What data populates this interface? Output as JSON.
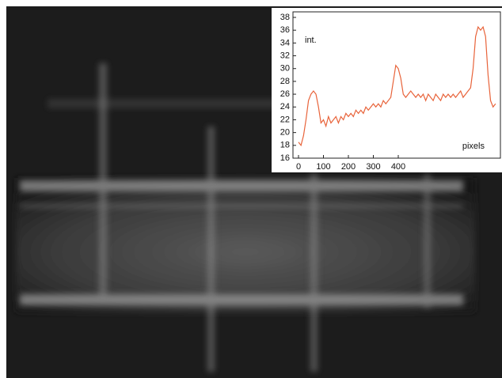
{
  "chart_data": {
    "type": "line",
    "annotations": [
      "int.",
      "pixels"
    ],
    "x": [
      0,
      10,
      20,
      30,
      40,
      50,
      60,
      70,
      80,
      90,
      100,
      110,
      120,
      130,
      140,
      150,
      160,
      170,
      180,
      190,
      200,
      210,
      220,
      230,
      240,
      250,
      260,
      270,
      280,
      290,
      300,
      310,
      320,
      330,
      340,
      350,
      360,
      370,
      380,
      390,
      400,
      410,
      420,
      430,
      440,
      450,
      460,
      470,
      480,
      490,
      500,
      510,
      520,
      530,
      540,
      550,
      560,
      570,
      580,
      590,
      600,
      610,
      620,
      630,
      640,
      650,
      660,
      670,
      680,
      690,
      700,
      710,
      720,
      730,
      740,
      750,
      760,
      770,
      780,
      790
    ],
    "series": [
      {
        "color": "#e8633a",
        "values": [
          18.5,
          18,
          19.5,
          22,
          25,
          26,
          26.5,
          26,
          24,
          21.5,
          22,
          21,
          22.5,
          21.5,
          22,
          22.5,
          21.5,
          22.5,
          22,
          23,
          22.5,
          23,
          22.5,
          23.5,
          23,
          23.5,
          23,
          24,
          23.5,
          24,
          24.5,
          24,
          24.5,
          24,
          25,
          24.5,
          25,
          25.5,
          28,
          30.5,
          30,
          28.5,
          26,
          25.5,
          26,
          26.5,
          26,
          25.5,
          26,
          25.5,
          26,
          25,
          26,
          25.5,
          25,
          26,
          25.5,
          25,
          26,
          25.5,
          26,
          25.5,
          26,
          25.5,
          26,
          26.5,
          25.5,
          26,
          26.5,
          27,
          30,
          35,
          36.5,
          36,
          36.5,
          35,
          29,
          25,
          24,
          24.5
        ]
      }
    ],
    "xlim": [
      0,
      800
    ],
    "xticks": [
      0,
      100,
      200,
      300,
      400
    ],
    "ylim": [
      16,
      38
    ],
    "yticks": [
      16,
      18,
      20,
      22,
      24,
      26,
      28,
      30,
      32,
      34,
      36,
      38
    ]
  }
}
